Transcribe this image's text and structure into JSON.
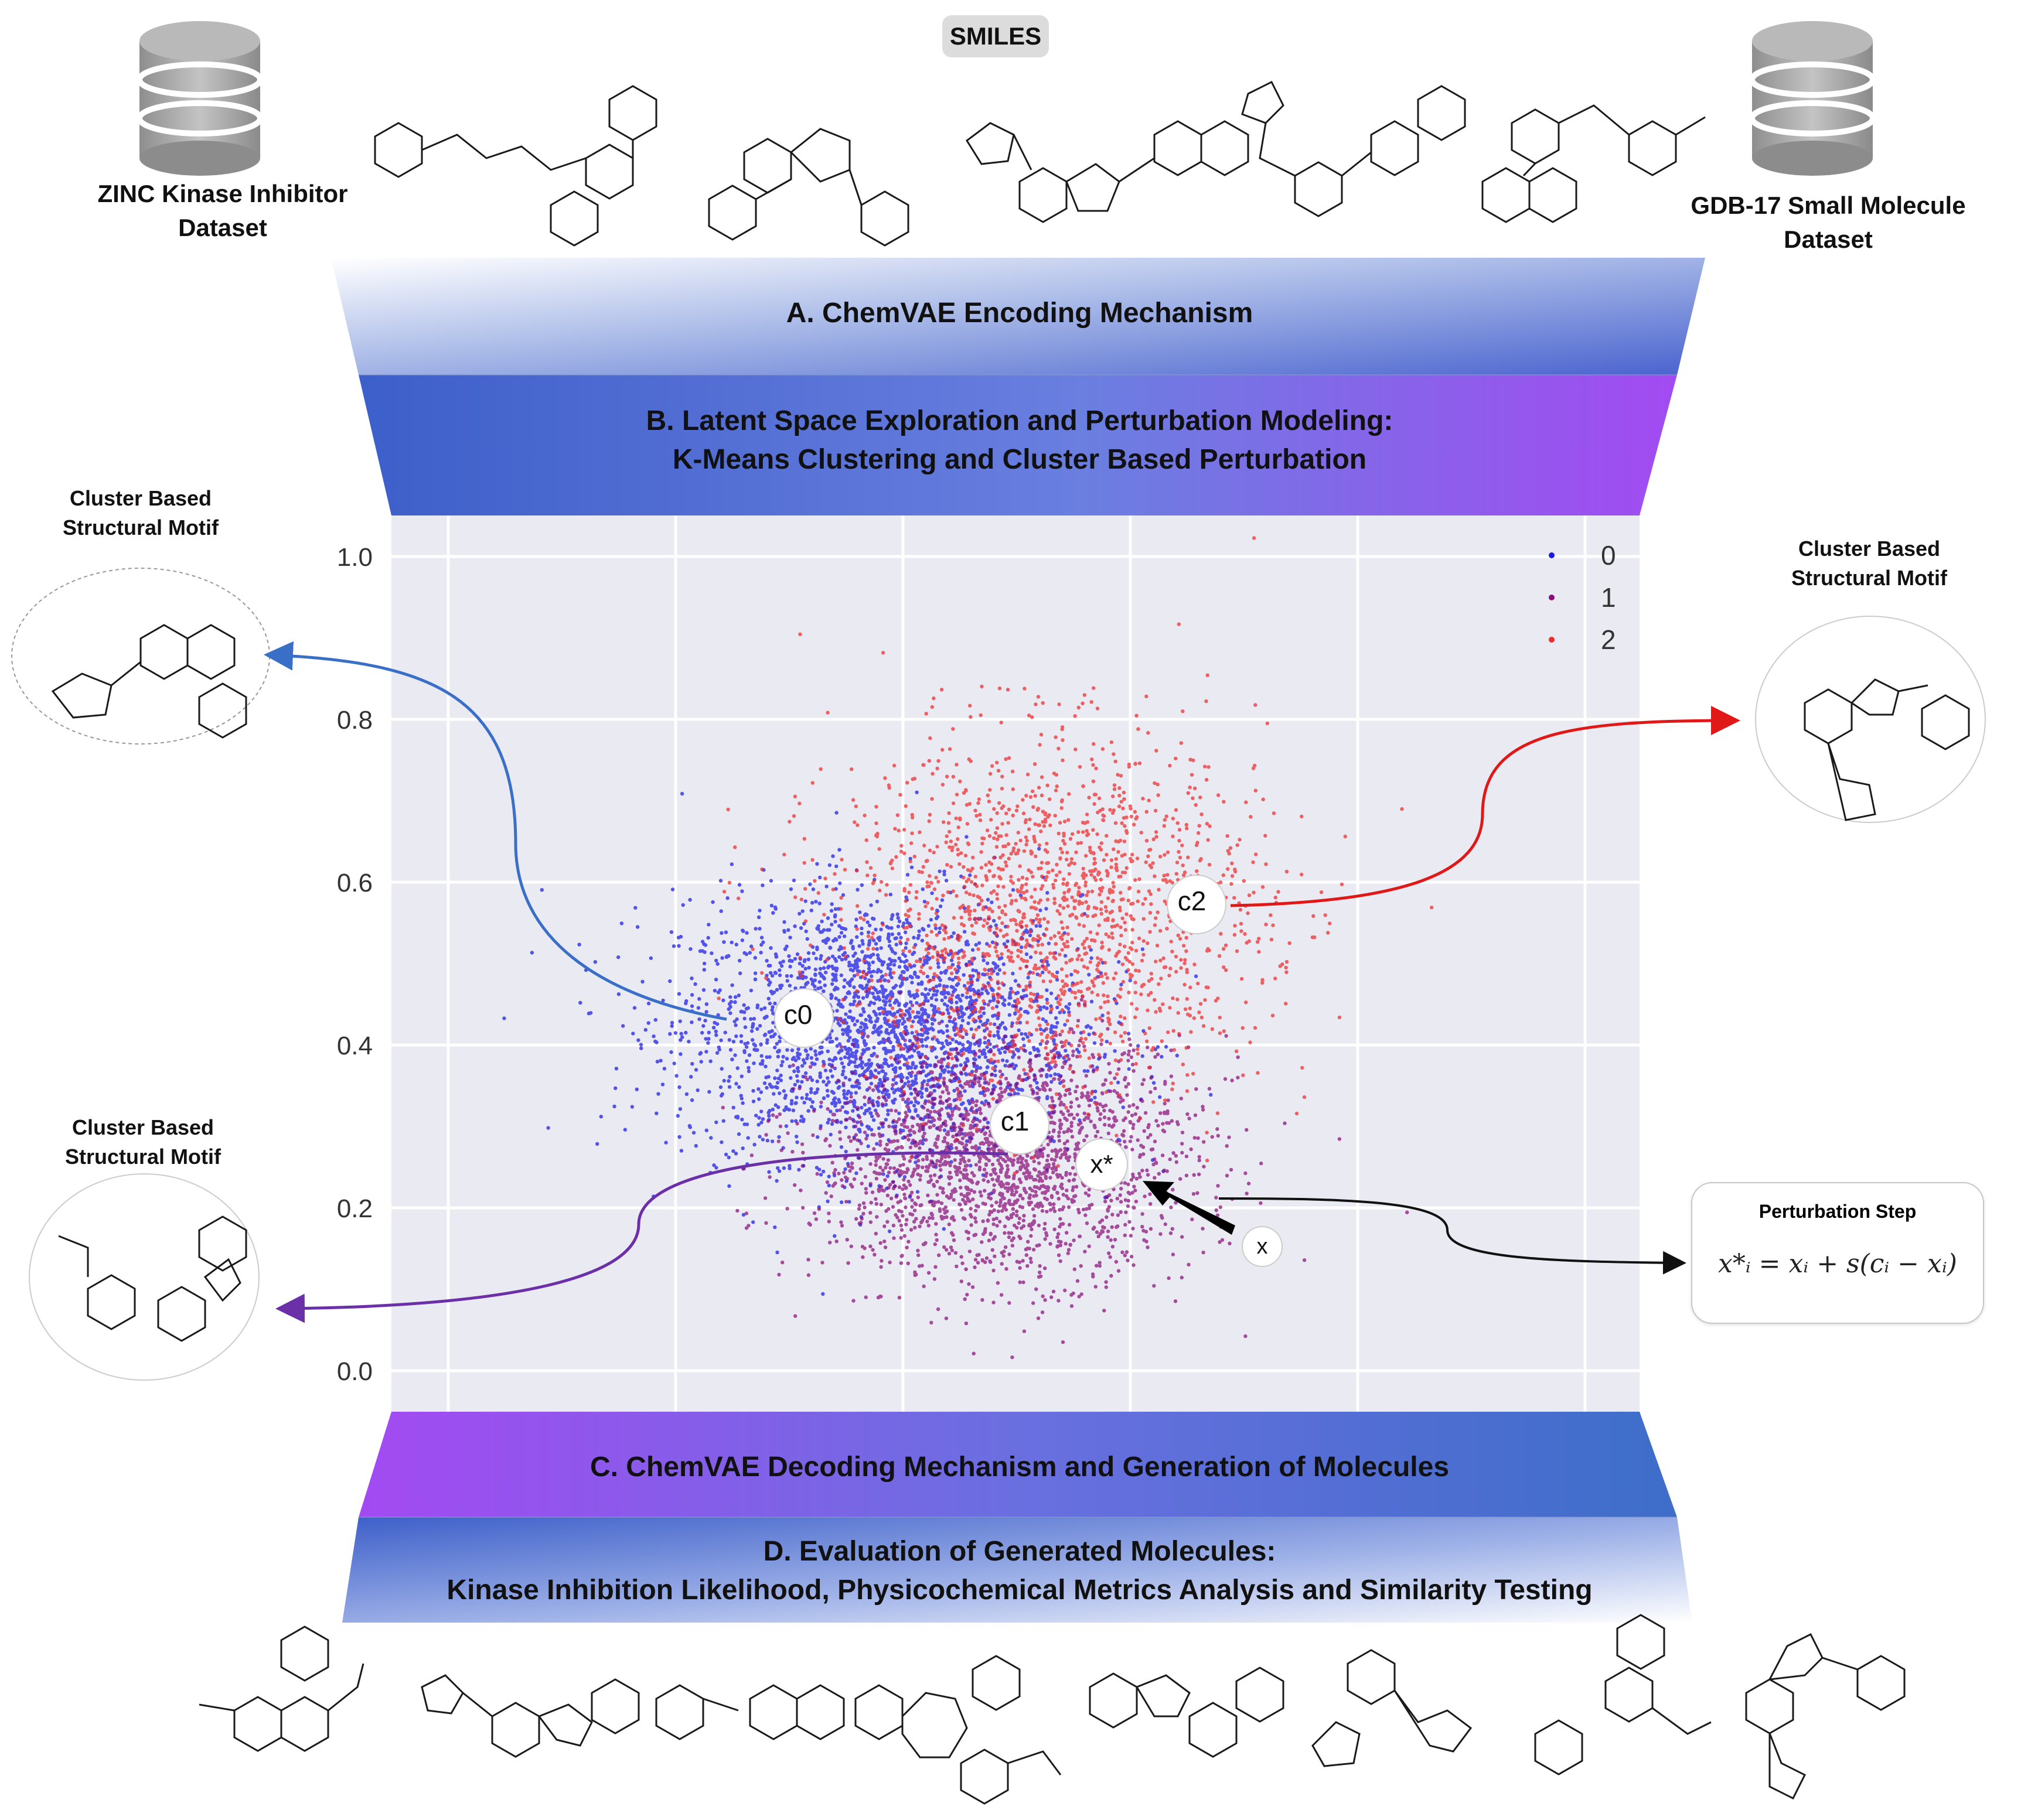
{
  "header": {
    "smiles_label": "SMILES",
    "left_dataset": [
      "ZINC Kinase Inhibitor",
      "Dataset"
    ],
    "right_dataset": [
      "GDB-17 Small Molecule",
      "Dataset"
    ]
  },
  "stages": {
    "a": [
      "A. ChemVAE Encoding  Mechanism"
    ],
    "b": [
      "B. Latent Space Exploration and Perturbation Modeling:",
      "K-Means Clustering and Cluster Based Perturbation"
    ],
    "c": [
      "C. ChemVAE Decoding Mechanism and Generation of Molecules"
    ],
    "d": [
      "D. Evaluation of Generated Molecules:",
      "Kinase Inhibition Likelihood, Physicochemical Metrics Analysis and Similarity Testing"
    ]
  },
  "motifs": {
    "left_top": [
      "Cluster Based",
      "Structural Motif"
    ],
    "right_top": [
      "Cluster Based",
      "Structural Motif"
    ],
    "left_bottom": [
      "Cluster Based",
      "Structural Motif"
    ]
  },
  "perturbation": {
    "title": "Perturbation Step",
    "formula": "x*ᵢ = xᵢ + s(cᵢ − xᵢ)"
  },
  "markers": {
    "c0": "c0",
    "c1": "c1",
    "c2": "c2",
    "x_star": "x*",
    "x": "x"
  },
  "colors": {
    "cluster_0": "#1a1ae6",
    "cluster_1": "#8a0f7a",
    "cluster_2": "#ee2b2b",
    "plot_bg": "#eaeaf2",
    "band_blue": "#4466cc",
    "band_purple": "#9b4cf0",
    "motif_arrow_left_top": "#3a6fc8",
    "motif_arrow_right": "#e01818",
    "motif_arrow_left_bottom": "#6b2fa8"
  },
  "chart_data": {
    "type": "scatter",
    "title": "",
    "xlabel": "",
    "ylabel": "",
    "ylim": [
      0.0,
      1.0
    ],
    "y_ticks": [
      "0.0",
      "0.2",
      "0.4",
      "0.6",
      "0.8",
      "1.0"
    ],
    "grid": true,
    "legend": {
      "position": "top-right",
      "entries": [
        "0",
        "1",
        "2"
      ]
    },
    "series": [
      {
        "name": "0",
        "color": "#1a1ae6",
        "center": [
          0.15,
          0.42
        ],
        "spread": [
          0.16,
          0.09
        ],
        "count": 2600
      },
      {
        "name": "1",
        "color": "#8a0f7a",
        "center": [
          0.26,
          0.26
        ],
        "spread": [
          0.15,
          0.08
        ],
        "count": 2200
      },
      {
        "name": "2",
        "color": "#ee2b2b",
        "center": [
          0.3,
          0.56
        ],
        "spread": [
          0.17,
          0.12
        ],
        "count": 1700
      }
    ],
    "centroids": [
      {
        "label": "c0",
        "x": 0.13,
        "y": 0.43
      },
      {
        "label": "c1",
        "x": 0.25,
        "y": 0.3
      },
      {
        "label": "c2",
        "x": 0.33,
        "y": 0.58
      }
    ],
    "perturbation_points": [
      {
        "label": "x*",
        "x": 0.29,
        "y": 0.25
      },
      {
        "label": "x",
        "x": 0.35,
        "y": 0.15
      }
    ]
  }
}
